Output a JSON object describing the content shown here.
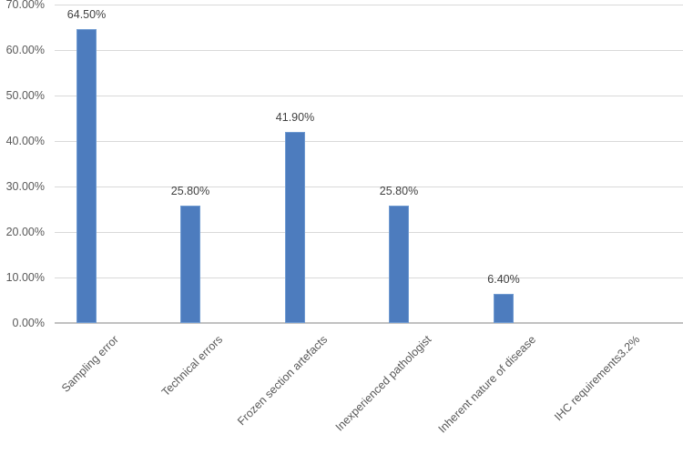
{
  "chart_data": {
    "type": "bar",
    "title": "",
    "categories": [
      "Sampling error",
      "Technical errors",
      "Frozen section artefacts",
      "Inexperienced pathologist",
      "Inherent nature of disease",
      "IHC requirements3.2%"
    ],
    "values": [
      64.5,
      25.8,
      41.9,
      25.8,
      6.4,
      3.2
    ],
    "rendered_bar_values": [
      64.5,
      25.8,
      41.9,
      25.8,
      6.4,
      0
    ],
    "data_labels": [
      "64.50%",
      "25.80%",
      "41.90%",
      "25.80%",
      "6.40%",
      ""
    ],
    "y_ticks": [
      "0.00%",
      "10.00%",
      "20.00%",
      "30.00%",
      "40.00%",
      "50.00%",
      "60.00%",
      "70.00%"
    ],
    "ylim": [
      0,
      70
    ],
    "xlabel": "",
    "ylabel": "",
    "grid": true,
    "legend_position": "none",
    "colors": {
      "bar_fill": "#4D7CBE",
      "bar_border": "#6F9AD1",
      "gridline": "#D9D9D9",
      "axis_line": "#C1C1C1",
      "axis_text": "#595959",
      "data_label_text": "#404040",
      "background": "#FFFFFF"
    }
  }
}
